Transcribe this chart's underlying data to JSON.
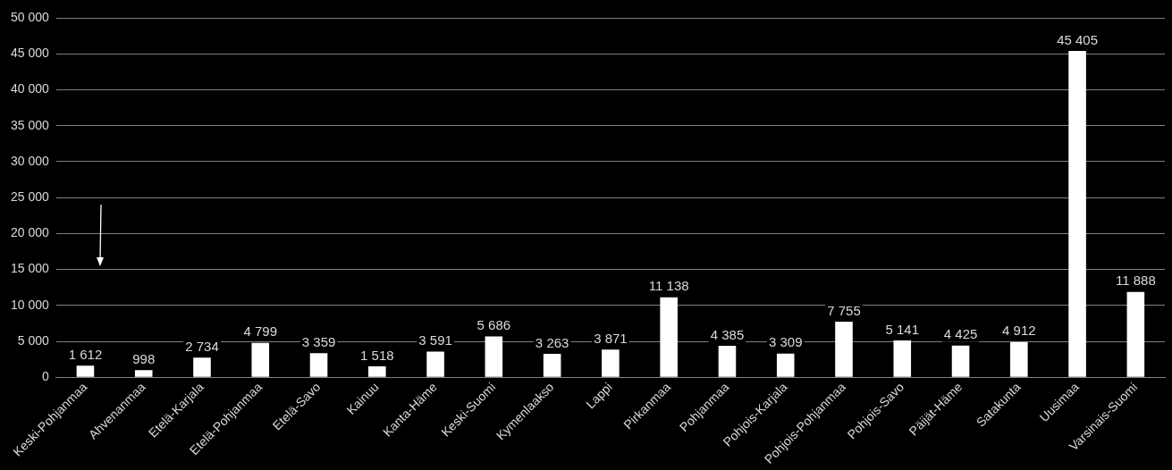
{
  "chart_data": {
    "type": "bar",
    "categories": [
      "Keski-Pohjanmaa",
      "Ahvenanmaa",
      "Etelä-Karjala",
      "Etelä-Pohjanmaa",
      "Etelä-Savo",
      "Kainuu",
      "Kanta-Häme",
      "Keski-Suomi",
      "Kymenlaakso",
      "Lappi",
      "Pirkanmaa",
      "Pohjanmaa",
      "Pohjois-Karjala",
      "Pohjois-Pohjanmaa",
      "Pohjois-Savo",
      "Päijät-Häme",
      "Satakunta",
      "Uusimaa",
      "Varsinais-Suomi"
    ],
    "values": [
      1612,
      998,
      2734,
      4799,
      3359,
      1518,
      3591,
      5686,
      3263,
      3871,
      11138,
      4385,
      3309,
      7755,
      5141,
      4425,
      4912,
      45405,
      11888
    ],
    "value_labels": [
      "1 612",
      "998",
      "2 734",
      "4 799",
      "3 359",
      "1 518",
      "3 591",
      "5 686",
      "3 263",
      "3 871",
      "11 138",
      "4 385",
      "3 309",
      "7 755",
      "5 141",
      "4 425",
      "4 912",
      "45 405",
      "11 888"
    ],
    "color": "#ffffff",
    "ylim": [
      0,
      50000
    ],
    "yticks": [
      0,
      {
        "value": 5000,
        "label": "5 000"
      },
      {
        "value": 10000,
        "label": "10 000"
      },
      {
        "value": 15000,
        "label": "15 000"
      },
      {
        "value": 20000,
        "label": "20 000"
      },
      {
        "value": 25000,
        "label": "25 000"
      },
      {
        "value": 30000,
        "label": "30 000"
      },
      {
        "value": 35000,
        "label": "35 000"
      },
      {
        "value": 40000,
        "label": "40 000"
      },
      {
        "value": 45000,
        "label": "45 000"
      },
      {
        "value": 50000,
        "label": "50 000"
      }
    ],
    "grid": "y",
    "legend": false
  }
}
